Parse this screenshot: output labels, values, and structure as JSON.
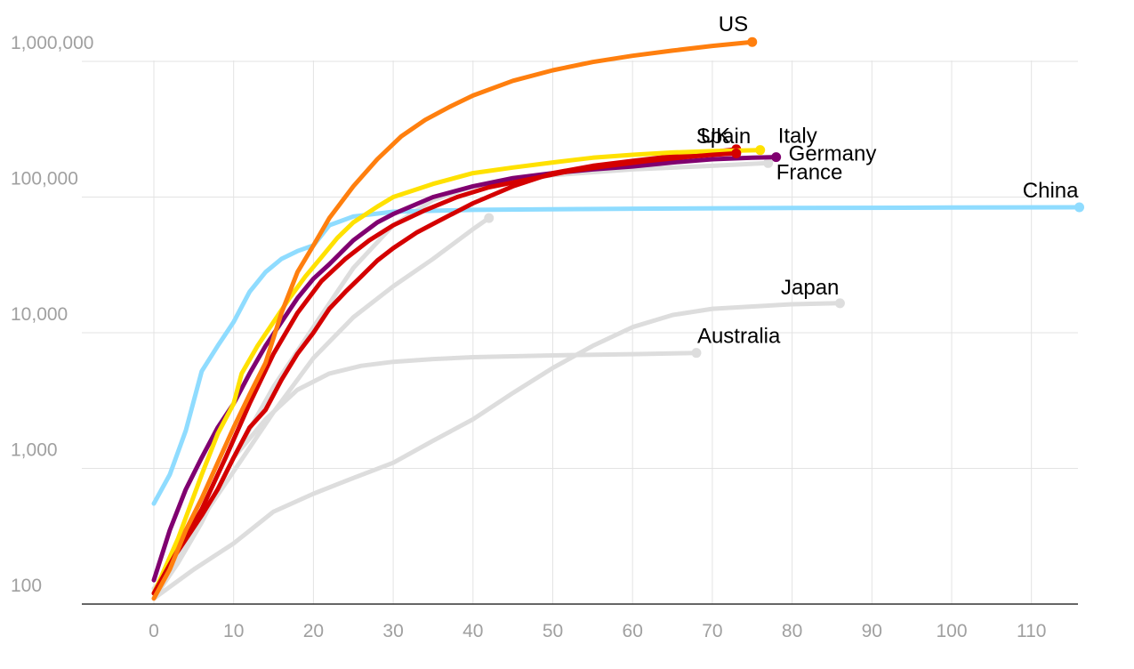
{
  "chart_data": {
    "type": "line",
    "title": "",
    "xlabel": "",
    "ylabel": "",
    "y_scale": "log",
    "xlim": [
      -9,
      116
    ],
    "ylim": [
      100,
      1400000
    ],
    "x_ticks": [
      0,
      10,
      20,
      30,
      40,
      50,
      60,
      70,
      80,
      90,
      100,
      110
    ],
    "x_tick_labels": [
      "0",
      "10",
      "20",
      "30",
      "40",
      "50",
      "60",
      "70",
      "80",
      "90",
      "100",
      "110"
    ],
    "y_ticks": [
      100,
      1000,
      10000,
      100000,
      1000000
    ],
    "y_tick_labels": [
      "100",
      "1,000",
      "10,000",
      "100,000",
      "1,000,000"
    ],
    "grid": true,
    "legend": "none",
    "highlight_colors": {
      "US": "#ff7f0e",
      "Spain": "#d40000",
      "UK": "#d40000",
      "Italy": "#ffe100",
      "Germany": "#800070",
      "China": "#8fdcff",
      "other": "#dddddd"
    },
    "series": [
      {
        "name": "",
        "color": "#dddddd",
        "points": [
          [
            0,
            120
          ],
          [
            5,
            350
          ],
          [
            10,
            950
          ],
          [
            15,
            2600
          ],
          [
            20,
            6500
          ],
          [
            25,
            13000
          ],
          [
            30,
            22000
          ],
          [
            35,
            35000
          ],
          [
            40,
            58000
          ],
          [
            42,
            70000
          ]
        ]
      },
      {
        "name": "France",
        "color": "#dddddd",
        "points": [
          [
            0,
            110
          ],
          [
            3,
            200
          ],
          [
            6,
            420
          ],
          [
            10,
            1200
          ],
          [
            15,
            4000
          ],
          [
            20,
            11000
          ],
          [
            25,
            30000
          ],
          [
            30,
            62000
          ],
          [
            35,
            95000
          ],
          [
            40,
            120000
          ],
          [
            50,
            145000
          ],
          [
            60,
            160000
          ],
          [
            70,
            170000
          ],
          [
            77,
            178000
          ]
        ]
      },
      {
        "name": "Japan",
        "color": "#dddddd",
        "points": [
          [
            0,
            110
          ],
          [
            5,
            180
          ],
          [
            10,
            280
          ],
          [
            15,
            480
          ],
          [
            20,
            650
          ],
          [
            25,
            850
          ],
          [
            30,
            1100
          ],
          [
            35,
            1600
          ],
          [
            40,
            2300
          ],
          [
            45,
            3600
          ],
          [
            50,
            5500
          ],
          [
            55,
            8000
          ],
          [
            60,
            11000
          ],
          [
            65,
            13500
          ],
          [
            70,
            15000
          ],
          [
            80,
            16200
          ],
          [
            86,
            16500
          ]
        ]
      },
      {
        "name": "Australia",
        "color": "#dddddd",
        "points": [
          [
            0,
            130
          ],
          [
            3,
            200
          ],
          [
            6,
            400
          ],
          [
            10,
            1200
          ],
          [
            14,
            2300
          ],
          [
            18,
            3800
          ],
          [
            22,
            5000
          ],
          [
            26,
            5700
          ],
          [
            30,
            6100
          ],
          [
            35,
            6400
          ],
          [
            40,
            6600
          ],
          [
            50,
            6800
          ],
          [
            60,
            6950
          ],
          [
            68,
            7100
          ]
        ]
      },
      {
        "name": "China",
        "color": "#8fdcff",
        "points": [
          [
            0,
            550
          ],
          [
            2,
            900
          ],
          [
            4,
            1900
          ],
          [
            6,
            5200
          ],
          [
            8,
            8000
          ],
          [
            10,
            12000
          ],
          [
            12,
            20000
          ],
          [
            14,
            28000
          ],
          [
            16,
            35000
          ],
          [
            18,
            40000
          ],
          [
            20,
            44000
          ],
          [
            22,
            62000
          ],
          [
            25,
            72000
          ],
          [
            30,
            78000
          ],
          [
            40,
            80500
          ],
          [
            60,
            82000
          ],
          [
            80,
            83000
          ],
          [
            100,
            83700
          ],
          [
            116,
            84000
          ]
        ]
      },
      {
        "name": "Germany",
        "color": "#800070",
        "points": [
          [
            0,
            150
          ],
          [
            2,
            350
          ],
          [
            4,
            700
          ],
          [
            6,
            1200
          ],
          [
            8,
            2000
          ],
          [
            10,
            3000
          ],
          [
            12,
            5000
          ],
          [
            14,
            8000
          ],
          [
            16,
            12000
          ],
          [
            18,
            18000
          ],
          [
            20,
            25000
          ],
          [
            22,
            32000
          ],
          [
            25,
            48000
          ],
          [
            28,
            65000
          ],
          [
            30,
            75000
          ],
          [
            35,
            100000
          ],
          [
            40,
            120000
          ],
          [
            45,
            138000
          ],
          [
            50,
            150000
          ],
          [
            55,
            160000
          ],
          [
            60,
            168000
          ],
          [
            65,
            180000
          ],
          [
            70,
            190000
          ],
          [
            75,
            195000
          ],
          [
            78,
            197000
          ]
        ]
      },
      {
        "name": "Spain",
        "color": "#d40000",
        "points": [
          [
            0,
            120
          ],
          [
            2,
            200
          ],
          [
            4,
            300
          ],
          [
            6,
            450
          ],
          [
            8,
            700
          ],
          [
            10,
            1200
          ],
          [
            12,
            2000
          ],
          [
            14,
            2700
          ],
          [
            16,
            4500
          ],
          [
            18,
            7000
          ],
          [
            20,
            10000
          ],
          [
            22,
            15000
          ],
          [
            24,
            20000
          ],
          [
            26,
            26000
          ],
          [
            28,
            34000
          ],
          [
            30,
            42000
          ],
          [
            33,
            55000
          ],
          [
            36,
            68000
          ],
          [
            40,
            90000
          ],
          [
            45,
            120000
          ],
          [
            50,
            150000
          ],
          [
            55,
            170000
          ],
          [
            60,
            185000
          ],
          [
            65,
            200000
          ],
          [
            70,
            215000
          ],
          [
            73,
            225000
          ]
        ]
      },
      {
        "name": "Italy",
        "color": "#ffe100",
        "points": [
          [
            0,
            120
          ],
          [
            3,
            300
          ],
          [
            6,
            900
          ],
          [
            8,
            1800
          ],
          [
            10,
            3000
          ],
          [
            11,
            5000
          ],
          [
            13,
            8000
          ],
          [
            15,
            12000
          ],
          [
            17,
            18000
          ],
          [
            19,
            26000
          ],
          [
            21,
            36000
          ],
          [
            23,
            50000
          ],
          [
            25,
            65000
          ],
          [
            28,
            85000
          ],
          [
            30,
            100000
          ],
          [
            35,
            125000
          ],
          [
            40,
            150000
          ],
          [
            45,
            165000
          ],
          [
            50,
            180000
          ],
          [
            55,
            195000
          ],
          [
            60,
            205000
          ],
          [
            65,
            213000
          ],
          [
            70,
            218000
          ],
          [
            76,
            222000
          ]
        ]
      },
      {
        "name": "UK",
        "color": "#d40000",
        "points": [
          [
            0,
            120
          ],
          [
            3,
            250
          ],
          [
            6,
            500
          ],
          [
            9,
            1200
          ],
          [
            12,
            3000
          ],
          [
            15,
            7000
          ],
          [
            18,
            14000
          ],
          [
            21,
            24000
          ],
          [
            24,
            35000
          ],
          [
            27,
            48000
          ],
          [
            30,
            62000
          ],
          [
            34,
            80000
          ],
          [
            38,
            100000
          ],
          [
            42,
            118000
          ],
          [
            47,
            135000
          ],
          [
            52,
            155000
          ],
          [
            57,
            170000
          ],
          [
            62,
            185000
          ],
          [
            67,
            198000
          ],
          [
            70,
            205000
          ],
          [
            73,
            210000
          ]
        ]
      },
      {
        "name": "US",
        "color": "#ff7f0e",
        "points": [
          [
            0,
            110
          ],
          [
            2,
            180
          ],
          [
            4,
            350
          ],
          [
            6,
            600
          ],
          [
            8,
            1100
          ],
          [
            10,
            2000
          ],
          [
            12,
            3500
          ],
          [
            14,
            6000
          ],
          [
            16,
            14000
          ],
          [
            18,
            28000
          ],
          [
            20,
            44000
          ],
          [
            22,
            70000
          ],
          [
            25,
            120000
          ],
          [
            28,
            190000
          ],
          [
            31,
            280000
          ],
          [
            34,
            370000
          ],
          [
            37,
            460000
          ],
          [
            40,
            560000
          ],
          [
            45,
            720000
          ],
          [
            50,
            860000
          ],
          [
            55,
            990000
          ],
          [
            60,
            1100000
          ],
          [
            65,
            1200000
          ],
          [
            70,
            1300000
          ],
          [
            75,
            1390000
          ]
        ]
      }
    ],
    "labels": [
      {
        "series": "US",
        "text": "US"
      },
      {
        "series": "Spain",
        "text": "Spain"
      },
      {
        "series": "UK",
        "text": "UK"
      },
      {
        "series": "Italy",
        "text": "Italy"
      },
      {
        "series": "Germany",
        "text": "Germany"
      },
      {
        "series": "France",
        "text": "France"
      },
      {
        "series": "China",
        "text": "China"
      },
      {
        "series": "Japan",
        "text": "Japan"
      },
      {
        "series": "Australia",
        "text": "Australia"
      }
    ]
  }
}
